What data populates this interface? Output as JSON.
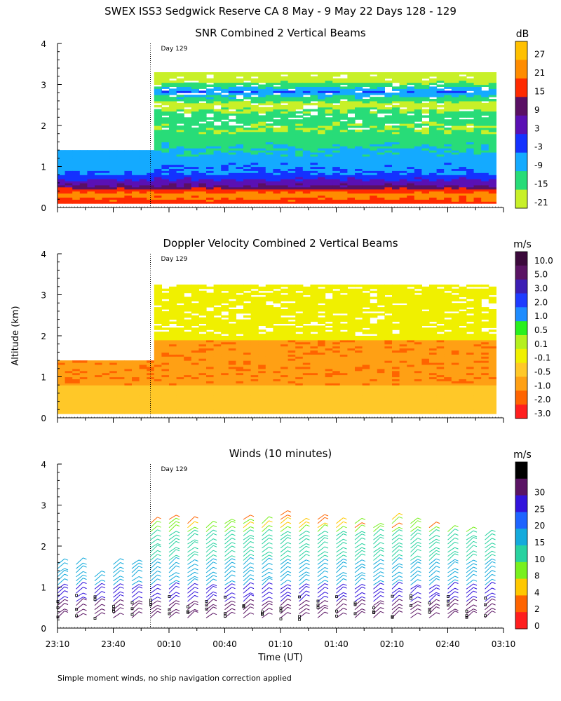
{
  "figure": {
    "title": "SWEX ISS3 Sedgwick Reserve CA   8 May -  9 May 22 Days 128 - 129",
    "ylabel": "Altitude (km)",
    "xlabel": "Time (UT)",
    "footnote": "Simple moment winds, no ship navigation correction applied",
    "x_ticks": [
      "23:10",
      "23:40",
      "00:10",
      "00:40",
      "01:10",
      "01:40",
      "02:10",
      "02:40",
      "03:10"
    ],
    "y_ticks": [
      "0",
      "1",
      "2",
      "3",
      "4"
    ],
    "day_marker": "Day 129"
  },
  "chart_data": [
    {
      "type": "heatmap",
      "title": "SNR Combined 2 Vertical Beams",
      "unit": "dB",
      "xlabel": "Time (UT)",
      "ylabel": "Altitude (km)",
      "x_range": [
        "23:10",
        "03:10"
      ],
      "ylim": [
        0,
        4
      ],
      "colorbar_levels": [
        "27",
        "21",
        "15",
        "9",
        "3",
        "-3",
        "-9",
        "-15",
        "-21"
      ],
      "colorbar_colors": [
        "#ffc000",
        "#ff8c00",
        "#ff2a00",
        "#5a1064",
        "#5a10b4",
        "#1432ff",
        "#14aaff",
        "#28dc78",
        "#c8f028"
      ],
      "profile_km": [
        {
          "alt": 0.1,
          "snr": 18
        },
        {
          "alt": 0.3,
          "snr": 24
        },
        {
          "alt": 0.5,
          "snr": 10
        },
        {
          "alt": 0.8,
          "snr": -3
        },
        {
          "alt": 1.0,
          "snr": -4
        },
        {
          "alt": 1.3,
          "snr": -8
        },
        {
          "alt": 1.6,
          "snr": -11
        },
        {
          "alt": 1.9,
          "snr": -15
        },
        {
          "alt": 2.2,
          "snr": -12
        },
        {
          "alt": 2.5,
          "snr": -18
        },
        {
          "alt": 2.8,
          "snr": -3
        },
        {
          "alt": 3.1,
          "snr": -19
        }
      ]
    },
    {
      "type": "heatmap",
      "title": "Doppler Velocity Combined 2 Vertical Beams",
      "unit": "m/s",
      "xlabel": "Time (UT)",
      "ylabel": "Altitude (km)",
      "x_range": [
        "23:10",
        "03:10"
      ],
      "ylim": [
        0,
        4
      ],
      "colorbar_levels": [
        "10.0",
        "5.0",
        "3.0",
        "2.0",
        "1.0",
        "0.5",
        "0.1",
        "-0.1",
        "-0.5",
        "-1.0",
        "-2.0",
        "-3.0"
      ],
      "colorbar_colors": [
        "#3c0a3c",
        "#5a1464",
        "#3c1eb4",
        "#1e3cff",
        "#1e8cff",
        "#28f01e",
        "#b4f01e",
        "#f0f000",
        "#ffc828",
        "#ffa014",
        "#ff6400",
        "#ff1e1e"
      ],
      "profile_km": [
        {
          "alt": 0.5,
          "w": -0.1
        },
        {
          "alt": 1.0,
          "w": -0.3
        },
        {
          "alt": 1.5,
          "w": -0.6
        },
        {
          "alt": 2.0,
          "w": -0.1
        },
        {
          "alt": 2.5,
          "w": -0.1
        },
        {
          "alt": 3.1,
          "w": -0.1
        }
      ]
    },
    {
      "type": "scatter",
      "title": "Winds (10 minutes)",
      "unit": "m/s",
      "xlabel": "Time (UT)",
      "ylabel": "Altitude (km)",
      "x_range": [
        "23:10",
        "03:10"
      ],
      "ylim": [
        0,
        4
      ],
      "colorbar_levels": [
        "0",
        "2",
        "4",
        "8",
        "10",
        "15",
        "20",
        "25",
        "30"
      ],
      "colorbar_colors": [
        "#000000",
        "#5a1464",
        "#3214dc",
        "#1e64ff",
        "#14aadc",
        "#28d2a0",
        "#78f01e",
        "#ffc800",
        "#ff6400",
        "#ff1e1e"
      ],
      "wind_profiles": [
        {
          "time": "23:10",
          "top_km": 1.6
        },
        {
          "time": "23:20",
          "top_km": 1.6
        },
        {
          "time": "23:30",
          "top_km": 1.3
        },
        {
          "time": "23:40",
          "top_km": 1.6
        },
        {
          "time": "23:50",
          "top_km": 1.6
        },
        {
          "time": "00:00",
          "top_km": 2.6
        },
        {
          "time": "00:10",
          "top_km": 2.7
        },
        {
          "time": "00:20",
          "top_km": 2.6
        },
        {
          "time": "00:30",
          "top_km": 2.5
        },
        {
          "time": "00:40",
          "top_km": 2.6
        },
        {
          "time": "00:50",
          "top_km": 2.7
        },
        {
          "time": "01:00",
          "top_km": 2.6
        },
        {
          "time": "01:10",
          "top_km": 2.8
        },
        {
          "time": "01:20",
          "top_km": 2.6
        },
        {
          "time": "01:30",
          "top_km": 2.7
        },
        {
          "time": "01:40",
          "top_km": 2.6
        },
        {
          "time": "01:50",
          "top_km": 2.6
        },
        {
          "time": "02:00",
          "top_km": 2.5
        },
        {
          "time": "02:10",
          "top_km": 2.7
        },
        {
          "time": "02:20",
          "top_km": 2.6
        },
        {
          "time": "02:30",
          "top_km": 2.5
        },
        {
          "time": "02:40",
          "top_km": 2.4
        },
        {
          "time": "02:50",
          "top_km": 2.4
        },
        {
          "time": "03:00",
          "top_km": 2.3
        }
      ]
    }
  ]
}
